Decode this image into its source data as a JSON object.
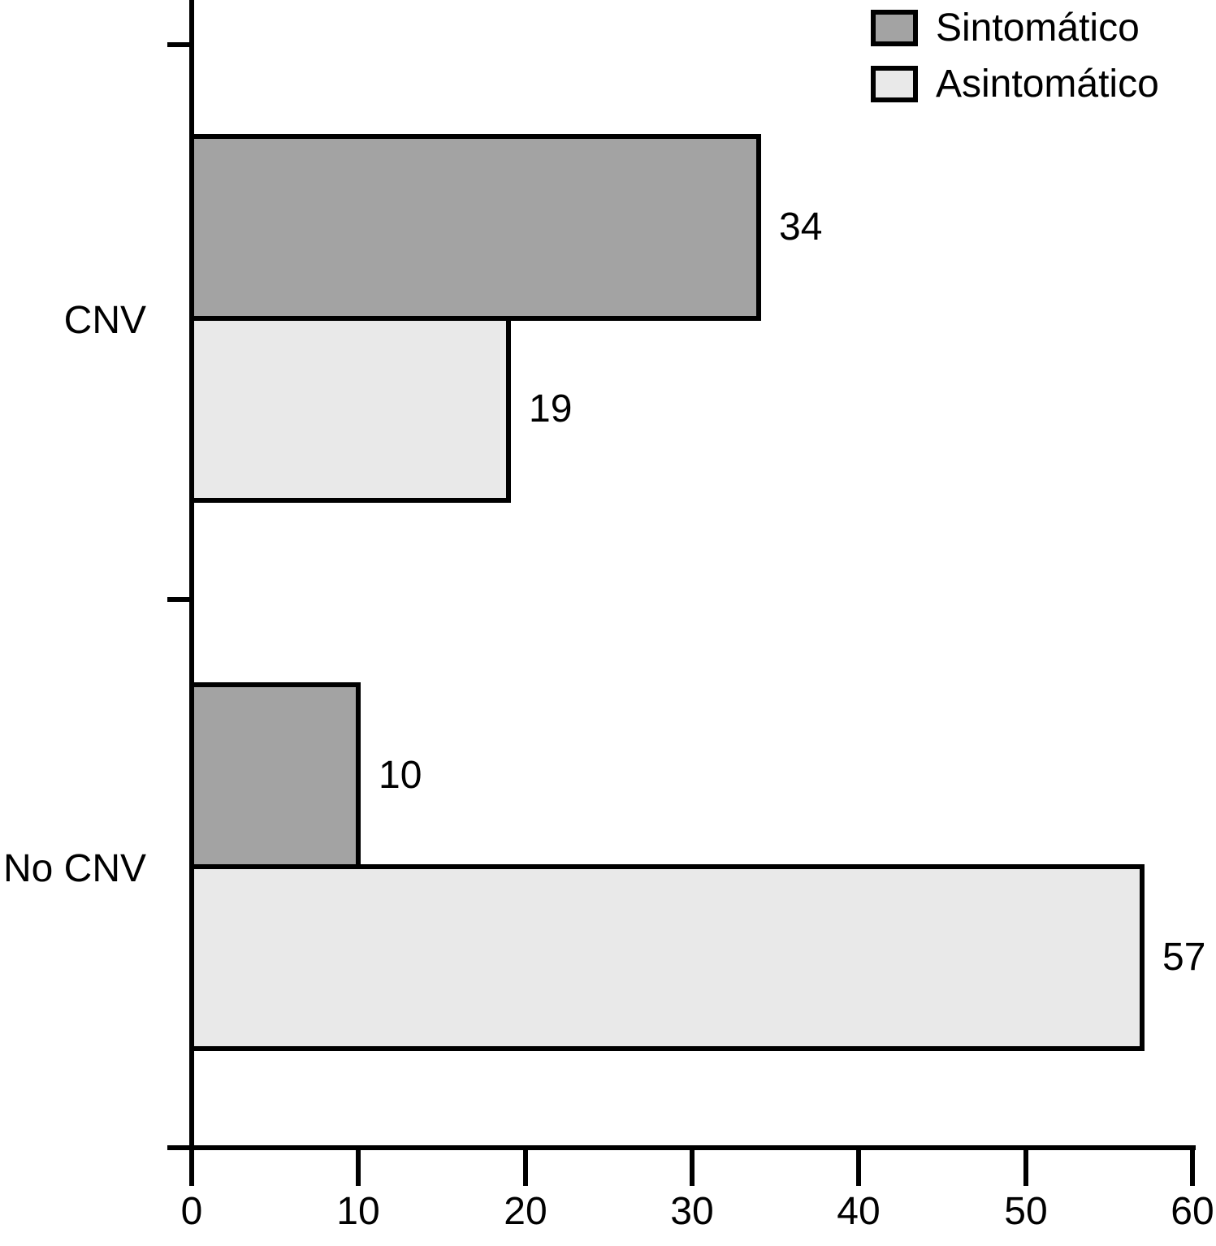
{
  "chart_data": {
    "type": "bar",
    "orientation": "horizontal",
    "title": "",
    "xlabel": "",
    "ylabel": "",
    "categories": [
      "CNV",
      "No CNV"
    ],
    "series": [
      {
        "name": "Sintomático",
        "color": "#a3a3a3",
        "values": [
          34,
          10
        ]
      },
      {
        "name": "Asintomático",
        "color": "#e9e9e9",
        "values": [
          19,
          57
        ]
      }
    ],
    "value_labels": [
      [
        "34",
        "19"
      ],
      [
        "10",
        "57"
      ]
    ],
    "xlim": [
      0,
      60
    ],
    "x_ticks": [
      "0",
      "10",
      "20",
      "30",
      "40",
      "50",
      "60"
    ],
    "grid": false,
    "legend_position": "top-right",
    "bar_border_color": "#000000",
    "background_color": "#ffffff",
    "text_color": "#000000"
  }
}
